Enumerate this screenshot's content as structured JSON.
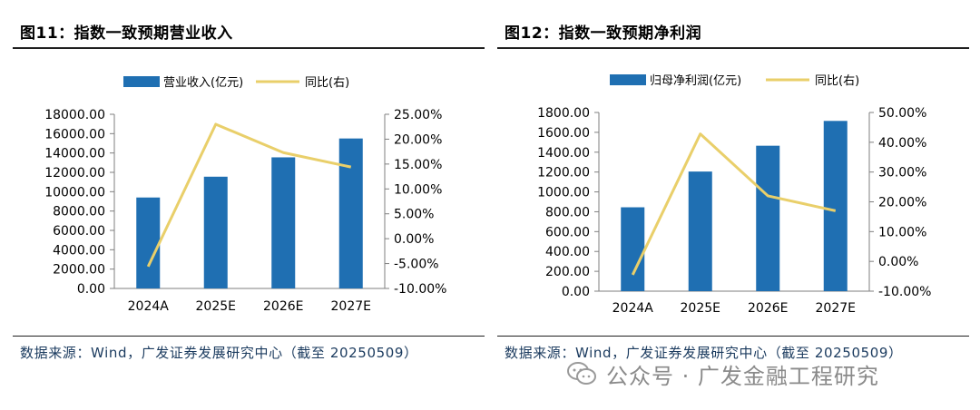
{
  "panels": [
    {
      "title": "图11：指数一致预期营业收入",
      "source": "数据来源：Wind，广发证券发展研究中心（截至 20250509）",
      "chart_data": {
        "type": "bar",
        "categories": [
          "2024A",
          "2025E",
          "2026E",
          "2027E"
        ],
        "series": [
          {
            "name": "营业收入(亿元)",
            "type": "bar",
            "axis": "left",
            "values": [
              9400,
              11550,
              13550,
              15500
            ]
          },
          {
            "name": "同比(右)",
            "type": "line",
            "axis": "right",
            "values": [
              -5.6,
              23.0,
              17.3,
              14.4
            ]
          }
        ],
        "left_axis": {
          "ylim": [
            0,
            18000
          ],
          "ticks": [
            "0.00",
            "2000.00",
            "4000.00",
            "6000.00",
            "8000.00",
            "10000.00",
            "12000.00",
            "14000.00",
            "16000.00",
            "18000.00"
          ]
        },
        "right_axis": {
          "ylim": [
            -10,
            25
          ],
          "ticks": [
            "-10.00%",
            "-5.00%",
            "0.00%",
            "5.00%",
            "10.00%",
            "15.00%",
            "20.00%",
            "25.00%"
          ]
        },
        "legend_position": "top",
        "grid": false
      }
    },
    {
      "title": "图12：指数一致预期净利润",
      "source": "数据来源：Wind，广发证券发展研究中心（截至 20250509）",
      "chart_data": {
        "type": "bar",
        "categories": [
          "2024A",
          "2025E",
          "2026E",
          "2027E"
        ],
        "series": [
          {
            "name": "归母净利润(亿元)",
            "type": "bar",
            "axis": "left",
            "values": [
              845,
              1205,
              1465,
              1715
            ]
          },
          {
            "name": "同比(右)",
            "type": "line",
            "axis": "right",
            "values": [
              -4.5,
              42.8,
              22.0,
              17.0
            ]
          }
        ],
        "left_axis": {
          "ylim": [
            0,
            1800
          ],
          "ticks": [
            "0.00",
            "200.00",
            "400.00",
            "600.00",
            "800.00",
            "1000.00",
            "1200.00",
            "1400.00",
            "1600.00",
            "1800.00"
          ]
        },
        "right_axis": {
          "ylim": [
            -10,
            50
          ],
          "ticks": [
            "-10.00%",
            "0.00%",
            "10.00%",
            "20.00%",
            "30.00%",
            "40.00%",
            "50.00%"
          ]
        },
        "legend_position": "top",
        "grid": false
      }
    }
  ],
  "colors": {
    "bar": "#1f6fb2",
    "line": "#e9cf6a",
    "axis": "#7f7f7f",
    "source_text": "#1a3a5e"
  },
  "watermark": {
    "icon": "wechat-icon",
    "text": "公众号 · 广发金融工程研究"
  }
}
